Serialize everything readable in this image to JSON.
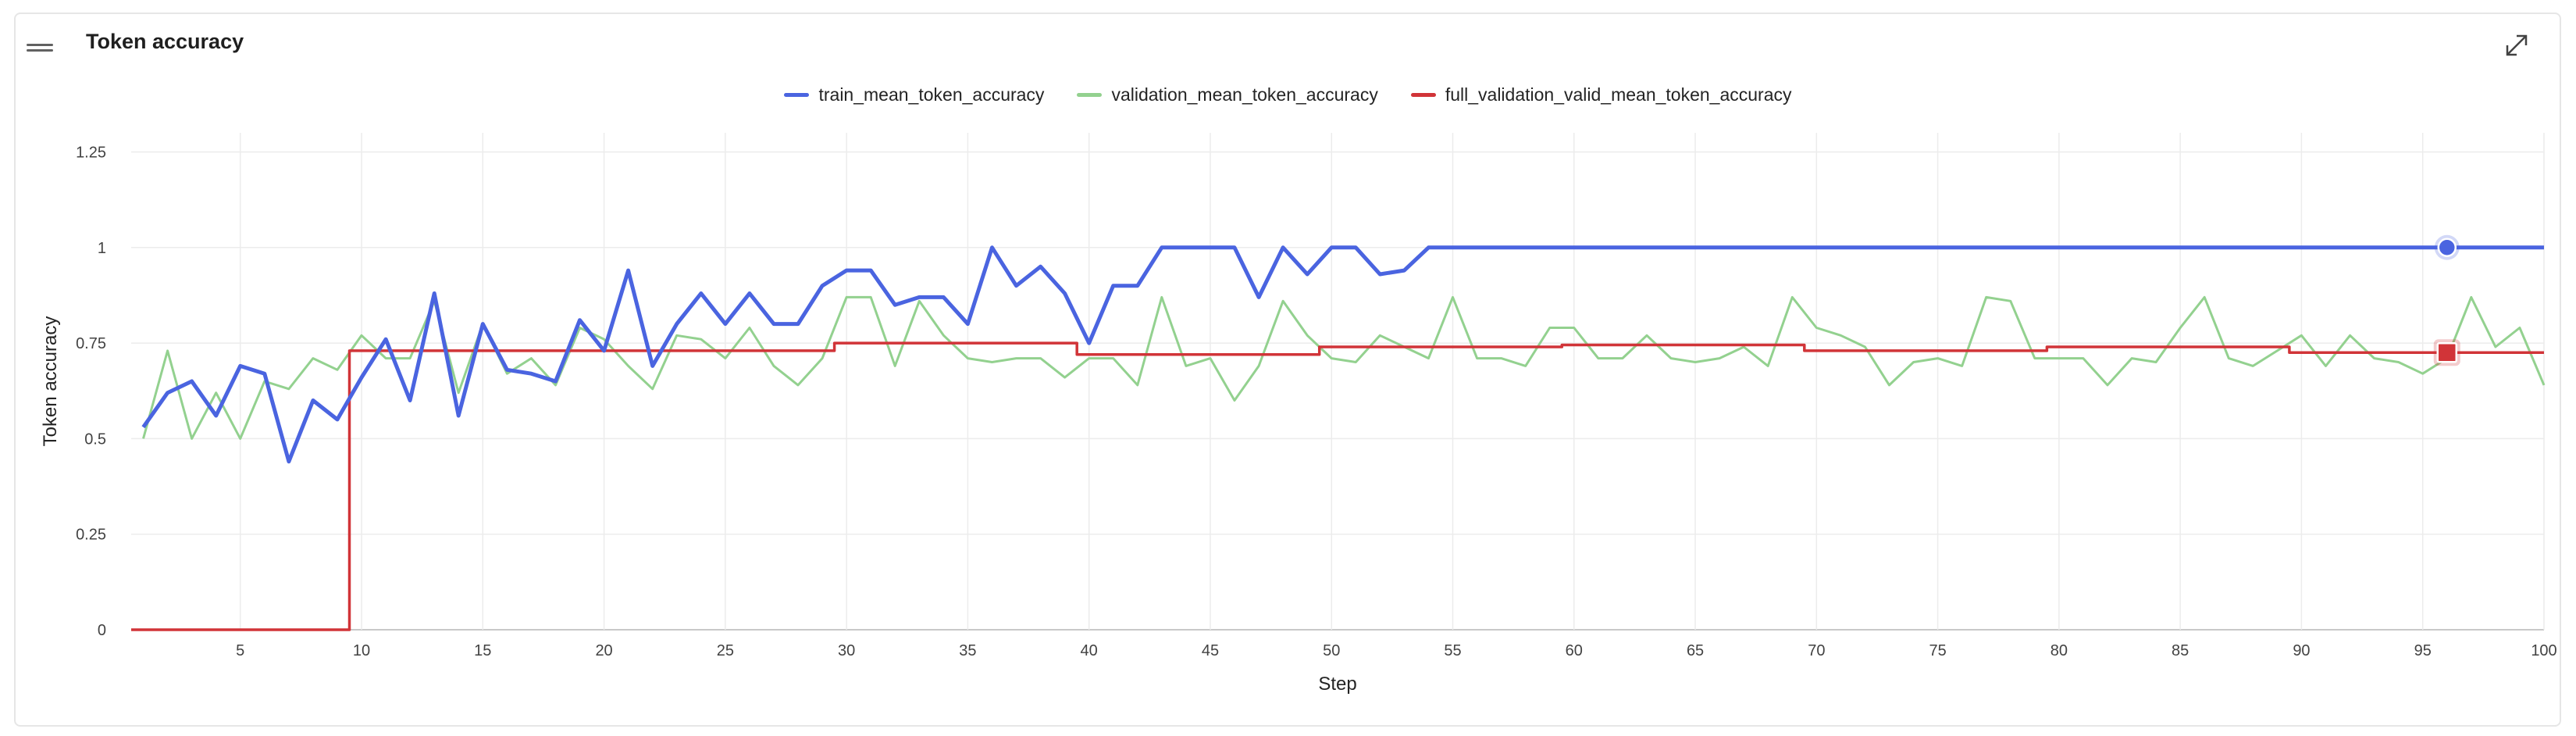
{
  "card": {
    "title": "Token accuracy"
  },
  "icons": {
    "drag": "drag-handle-icon",
    "expand": "expand-icon"
  },
  "chart_data": {
    "type": "line",
    "title": "Token accuracy",
    "xlabel": "Step",
    "ylabel": "Token accuracy",
    "xlim": [
      0.5,
      100
    ],
    "ylim": [
      0,
      1.3
    ],
    "x_ticks": [
      5,
      10,
      15,
      20,
      25,
      30,
      35,
      40,
      45,
      50,
      55,
      60,
      65,
      70,
      75,
      80,
      85,
      90,
      95,
      100
    ],
    "y_ticks": [
      0,
      0.25,
      0.5,
      0.75,
      1,
      1.25
    ],
    "y_tick_labels": [
      "0",
      "0.25",
      "0.5",
      "0.75",
      "1",
      "1.25"
    ],
    "grid": true,
    "legend_position": "top-center",
    "x": [
      1,
      2,
      3,
      4,
      5,
      6,
      7,
      8,
      9,
      10,
      11,
      12,
      13,
      14,
      15,
      16,
      17,
      18,
      19,
      20,
      21,
      22,
      23,
      24,
      25,
      26,
      27,
      28,
      29,
      30,
      31,
      32,
      33,
      34,
      35,
      36,
      37,
      38,
      39,
      40,
      41,
      42,
      43,
      44,
      45,
      46,
      47,
      48,
      49,
      50,
      51,
      52,
      53,
      54,
      55,
      56,
      57,
      58,
      59,
      60,
      61,
      62,
      63,
      64,
      65,
      66,
      67,
      68,
      69,
      70,
      71,
      72,
      73,
      74,
      75,
      76,
      77,
      78,
      79,
      80,
      81,
      82,
      83,
      84,
      85,
      86,
      87,
      88,
      89,
      90,
      91,
      92,
      93,
      94,
      95,
      96,
      97,
      98,
      99,
      100
    ],
    "series": [
      {
        "name": "train_mean_token_accuracy",
        "color": "#4a64e0",
        "style": "line",
        "values": [
          0.53,
          0.62,
          0.65,
          0.56,
          0.69,
          0.67,
          0.44,
          0.6,
          0.55,
          0.66,
          0.76,
          0.6,
          0.88,
          0.56,
          0.8,
          0.68,
          0.67,
          0.65,
          0.81,
          0.73,
          0.94,
          0.69,
          0.8,
          0.88,
          0.8,
          0.88,
          0.8,
          0.8,
          0.9,
          0.94,
          0.94,
          0.85,
          0.87,
          0.87,
          0.8,
          1.0,
          0.9,
          0.95,
          0.88,
          0.75,
          0.9,
          0.9,
          1.0,
          1.0,
          1.0,
          1.0,
          0.87,
          1.0,
          0.93,
          1.0,
          1.0,
          0.93,
          0.94,
          1.0,
          1.0,
          1.0,
          1.0,
          1.0,
          1.0,
          1.0,
          1.0,
          1.0,
          1.0,
          1.0,
          1.0,
          1.0,
          1.0,
          1.0,
          1.0,
          1.0,
          1.0,
          1.0,
          1.0,
          1.0,
          1.0,
          1.0,
          1.0,
          1.0,
          1.0,
          1.0,
          1.0,
          1.0,
          1.0,
          1.0,
          1.0,
          1.0,
          1.0,
          1.0,
          1.0,
          1.0,
          1.0,
          1.0,
          1.0,
          1.0,
          1.0,
          1.0,
          1.0,
          1.0,
          1.0,
          1.0
        ]
      },
      {
        "name": "validation_mean_token_accuracy",
        "color": "#93d18f",
        "style": "line",
        "values": [
          0.5,
          0.73,
          0.5,
          0.62,
          0.5,
          0.65,
          0.63,
          0.71,
          0.68,
          0.77,
          0.71,
          0.71,
          0.86,
          0.62,
          0.8,
          0.67,
          0.71,
          0.64,
          0.79,
          0.76,
          0.69,
          0.63,
          0.77,
          0.76,
          0.71,
          0.79,
          0.69,
          0.64,
          0.71,
          0.87,
          0.87,
          0.69,
          0.86,
          0.77,
          0.71,
          0.7,
          0.71,
          0.71,
          0.66,
          0.71,
          0.71,
          0.64,
          0.87,
          0.69,
          0.71,
          0.6,
          0.69,
          0.86,
          0.77,
          0.71,
          0.7,
          0.77,
          0.74,
          0.71,
          0.87,
          0.71,
          0.71,
          0.69,
          0.79,
          0.79,
          0.71,
          0.71,
          0.77,
          0.71,
          0.7,
          0.71,
          0.74,
          0.69,
          0.87,
          0.79,
          0.77,
          0.74,
          0.64,
          0.7,
          0.71,
          0.69,
          0.87,
          0.86,
          0.71,
          0.71,
          0.71,
          0.64,
          0.71,
          0.7,
          0.79,
          0.87,
          0.71,
          0.69,
          0.73,
          0.77,
          0.69,
          0.77,
          0.71,
          0.7,
          0.67,
          0.71,
          0.87,
          0.74,
          0.79,
          0.64
        ]
      },
      {
        "name": "full_validation_valid_mean_token_accuracy",
        "color": "#d13438",
        "style": "step",
        "points": [
          [
            0.5,
            0
          ],
          [
            9.5,
            0
          ],
          [
            9.5,
            0.73
          ],
          [
            29.5,
            0.73
          ],
          [
            29.5,
            0.75
          ],
          [
            39.5,
            0.75
          ],
          [
            39.5,
            0.72
          ],
          [
            49.5,
            0.72
          ],
          [
            49.5,
            0.74
          ],
          [
            59.5,
            0.74
          ],
          [
            59.5,
            0.745
          ],
          [
            69.5,
            0.745
          ],
          [
            69.5,
            0.73
          ],
          [
            79.5,
            0.73
          ],
          [
            79.5,
            0.74
          ],
          [
            89.5,
            0.74
          ],
          [
            89.5,
            0.725
          ],
          [
            100,
            0.725
          ]
        ]
      }
    ]
  }
}
